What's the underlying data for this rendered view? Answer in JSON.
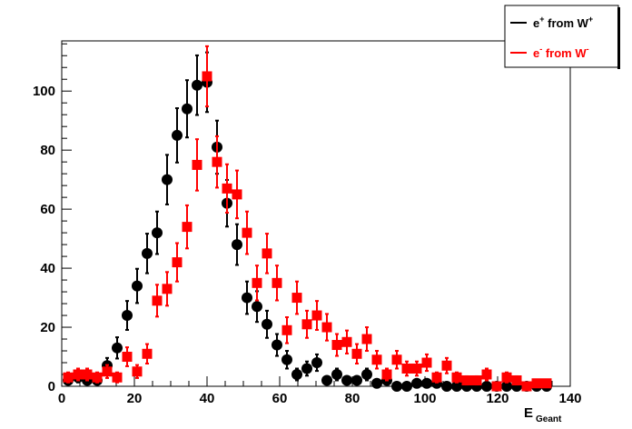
{
  "chart_data": {
    "type": "scatter",
    "xlabel": "E",
    "xlabel_sub": "Geant",
    "ylabel": "",
    "xlim": [
      0,
      140
    ],
    "ylim": [
      0,
      117
    ],
    "x_ticks": [
      0,
      20,
      40,
      60,
      80,
      100,
      120,
      140
    ],
    "y_ticks": [
      0,
      20,
      40,
      60,
      80,
      100
    ],
    "grid": false,
    "legend_position": "top-right",
    "legend": [
      {
        "label": "e",
        "sup": "+",
        "mid": " from W",
        "sup2": "+",
        "color": "#000000",
        "marker": "circle"
      },
      {
        "label": "e",
        "sup": "-",
        "mid": " from W",
        "sup2": "-",
        "color": "#ff0000",
        "marker": "square"
      }
    ],
    "series": [
      {
        "name": "e+ from W+",
        "color": "#000000",
        "marker": "circle",
        "x": [
          1.75,
          4.5,
          7.0,
          9.75,
          12.5,
          15.25,
          18.0,
          20.75,
          23.5,
          26.25,
          29.0,
          31.75,
          34.5,
          37.25,
          40.0,
          42.75,
          45.5,
          48.25,
          51.0,
          53.75,
          56.5,
          59.25,
          62.0,
          64.75,
          67.5,
          70.25,
          73.0,
          75.75,
          78.5,
          81.25,
          84.0,
          86.75,
          89.5,
          92.25,
          95.0,
          97.75,
          100.5,
          103.25,
          106.0,
          108.75,
          111.5,
          114.25,
          117.0,
          119.75,
          122.5,
          125.25,
          128.0,
          130.75,
          133.5
        ],
        "y": [
          2,
          3,
          2,
          2,
          7,
          13,
          24,
          34,
          45,
          52,
          70,
          85,
          94,
          102,
          103,
          81,
          62,
          48,
          30,
          27,
          21,
          14,
          9,
          4,
          6,
          8,
          2,
          4,
          2,
          2,
          4,
          1,
          2,
          0,
          0,
          1,
          1,
          1,
          0,
          0,
          0,
          0,
          0,
          0,
          0,
          0,
          0,
          0,
          0
        ],
        "err": [
          1.4,
          1.7,
          1.4,
          1.4,
          2.6,
          3.6,
          4.9,
          5.8,
          6.7,
          7.2,
          8.4,
          9.2,
          9.7,
          10.1,
          10.1,
          9.0,
          7.9,
          6.9,
          5.5,
          5.2,
          4.6,
          3.7,
          3.0,
          2.0,
          2.4,
          2.8,
          1.4,
          2.0,
          1.4,
          1.4,
          2.0,
          1.0,
          1.4,
          0,
          0,
          1.0,
          1.0,
          1.0,
          0,
          0,
          0,
          0,
          0,
          0,
          0,
          0,
          0,
          0,
          0
        ]
      },
      {
        "name": "e- from W-",
        "color": "#ff0000",
        "marker": "square",
        "x": [
          1.75,
          4.5,
          7.0,
          9.75,
          12.5,
          15.25,
          18.0,
          20.75,
          23.5,
          26.25,
          29.0,
          31.75,
          34.5,
          37.25,
          40.0,
          42.75,
          45.5,
          48.25,
          51.0,
          53.75,
          56.5,
          59.25,
          62.0,
          64.75,
          67.5,
          70.25,
          73.0,
          75.75,
          78.5,
          81.25,
          84.0,
          86.75,
          89.5,
          92.25,
          95.0,
          97.75,
          100.5,
          103.25,
          106.0,
          108.75,
          111.5,
          114.25,
          117.0,
          119.75,
          122.5,
          125.25,
          128.0,
          130.75,
          133.5
        ],
        "y": [
          3,
          4,
          4,
          3,
          5,
          3,
          10,
          5,
          11,
          29,
          33,
          42,
          54,
          75,
          105,
          76,
          67,
          65,
          52,
          35,
          45,
          35,
          19,
          30,
          21,
          24,
          20,
          14,
          15,
          11,
          16,
          9,
          4,
          9,
          6,
          6,
          8,
          3,
          7,
          3,
          2,
          2,
          4,
          0,
          3,
          2,
          0,
          1,
          1
        ],
        "err": [
          1.7,
          2.0,
          2.0,
          1.7,
          2.2,
          1.7,
          3.2,
          2.2,
          3.3,
          5.4,
          5.7,
          6.5,
          7.3,
          8.7,
          10.2,
          8.7,
          8.2,
          8.1,
          7.2,
          5.9,
          6.7,
          5.9,
          4.4,
          5.5,
          4.6,
          4.9,
          4.5,
          3.7,
          3.9,
          3.3,
          4.0,
          3.0,
          2.0,
          3.0,
          2.4,
          2.4,
          2.8,
          1.7,
          2.6,
          1.7,
          1.4,
          1.4,
          2.0,
          0,
          1.7,
          1.4,
          0,
          1.0,
          1.0
        ]
      }
    ]
  }
}
